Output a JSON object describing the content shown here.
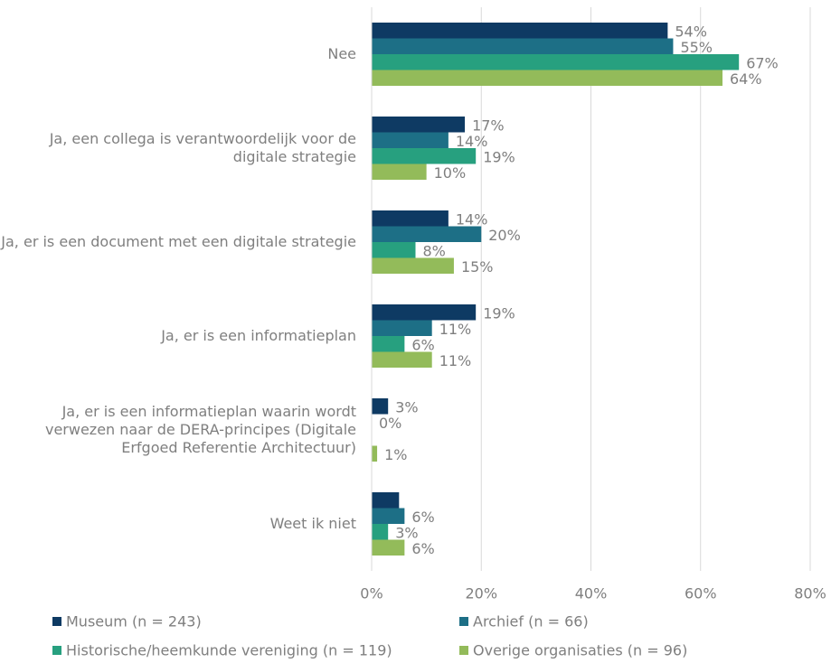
{
  "chart_data": {
    "type": "bar",
    "orientation": "horizontal",
    "categories": [
      "Nee",
      "Ja, een collega is verantwoordelijk voor de digitale strategie",
      "Ja, er is een document met een digitale strategie",
      "Ja, er is een informatieplan",
      "Ja, er is een informatieplan waarin wordt verwezen naar de DERA-principes (Digitale Erfgoed Referentie Architectuur)",
      "Weet ik niet"
    ],
    "series": [
      {
        "name": "Museum (n = 243)",
        "color": "#0e3a63",
        "values": [
          54,
          17,
          14,
          19,
          3,
          5
        ],
        "value_labels": [
          "54%",
          "17%",
          "14%",
          "19%",
          "3%",
          null
        ]
      },
      {
        "name": "Archief (n = 66)",
        "color": "#1d6f86",
        "values": [
          55,
          14,
          20,
          11,
          0,
          6
        ],
        "value_labels": [
          "55%",
          "14%",
          "20%",
          "11%",
          "0%",
          "6%"
        ]
      },
      {
        "name": "Historische/heemkunde vereniging (n = 119)",
        "color": "#27a07f",
        "values": [
          67,
          19,
          8,
          6,
          null,
          3
        ],
        "value_labels": [
          "67%",
          "19%",
          "8%",
          "6%",
          null,
          "3%"
        ]
      },
      {
        "name": "Overige organisaties (n = 96)",
        "color": "#93bb5a",
        "values": [
          64,
          10,
          15,
          11,
          1,
          6
        ],
        "value_labels": [
          "64%",
          "10%",
          "15%",
          "11%",
          "1%",
          "6%"
        ]
      }
    ],
    "xlim": [
      0,
      80
    ],
    "xticks": [
      {
        "value": 0,
        "label": "0%"
      },
      {
        "value": 20,
        "label": "20%"
      },
      {
        "value": 40,
        "label": "40%"
      },
      {
        "value": 60,
        "label": "60%"
      },
      {
        "value": 80,
        "label": "80%"
      }
    ],
    "grid": true,
    "legend": "bottom"
  }
}
